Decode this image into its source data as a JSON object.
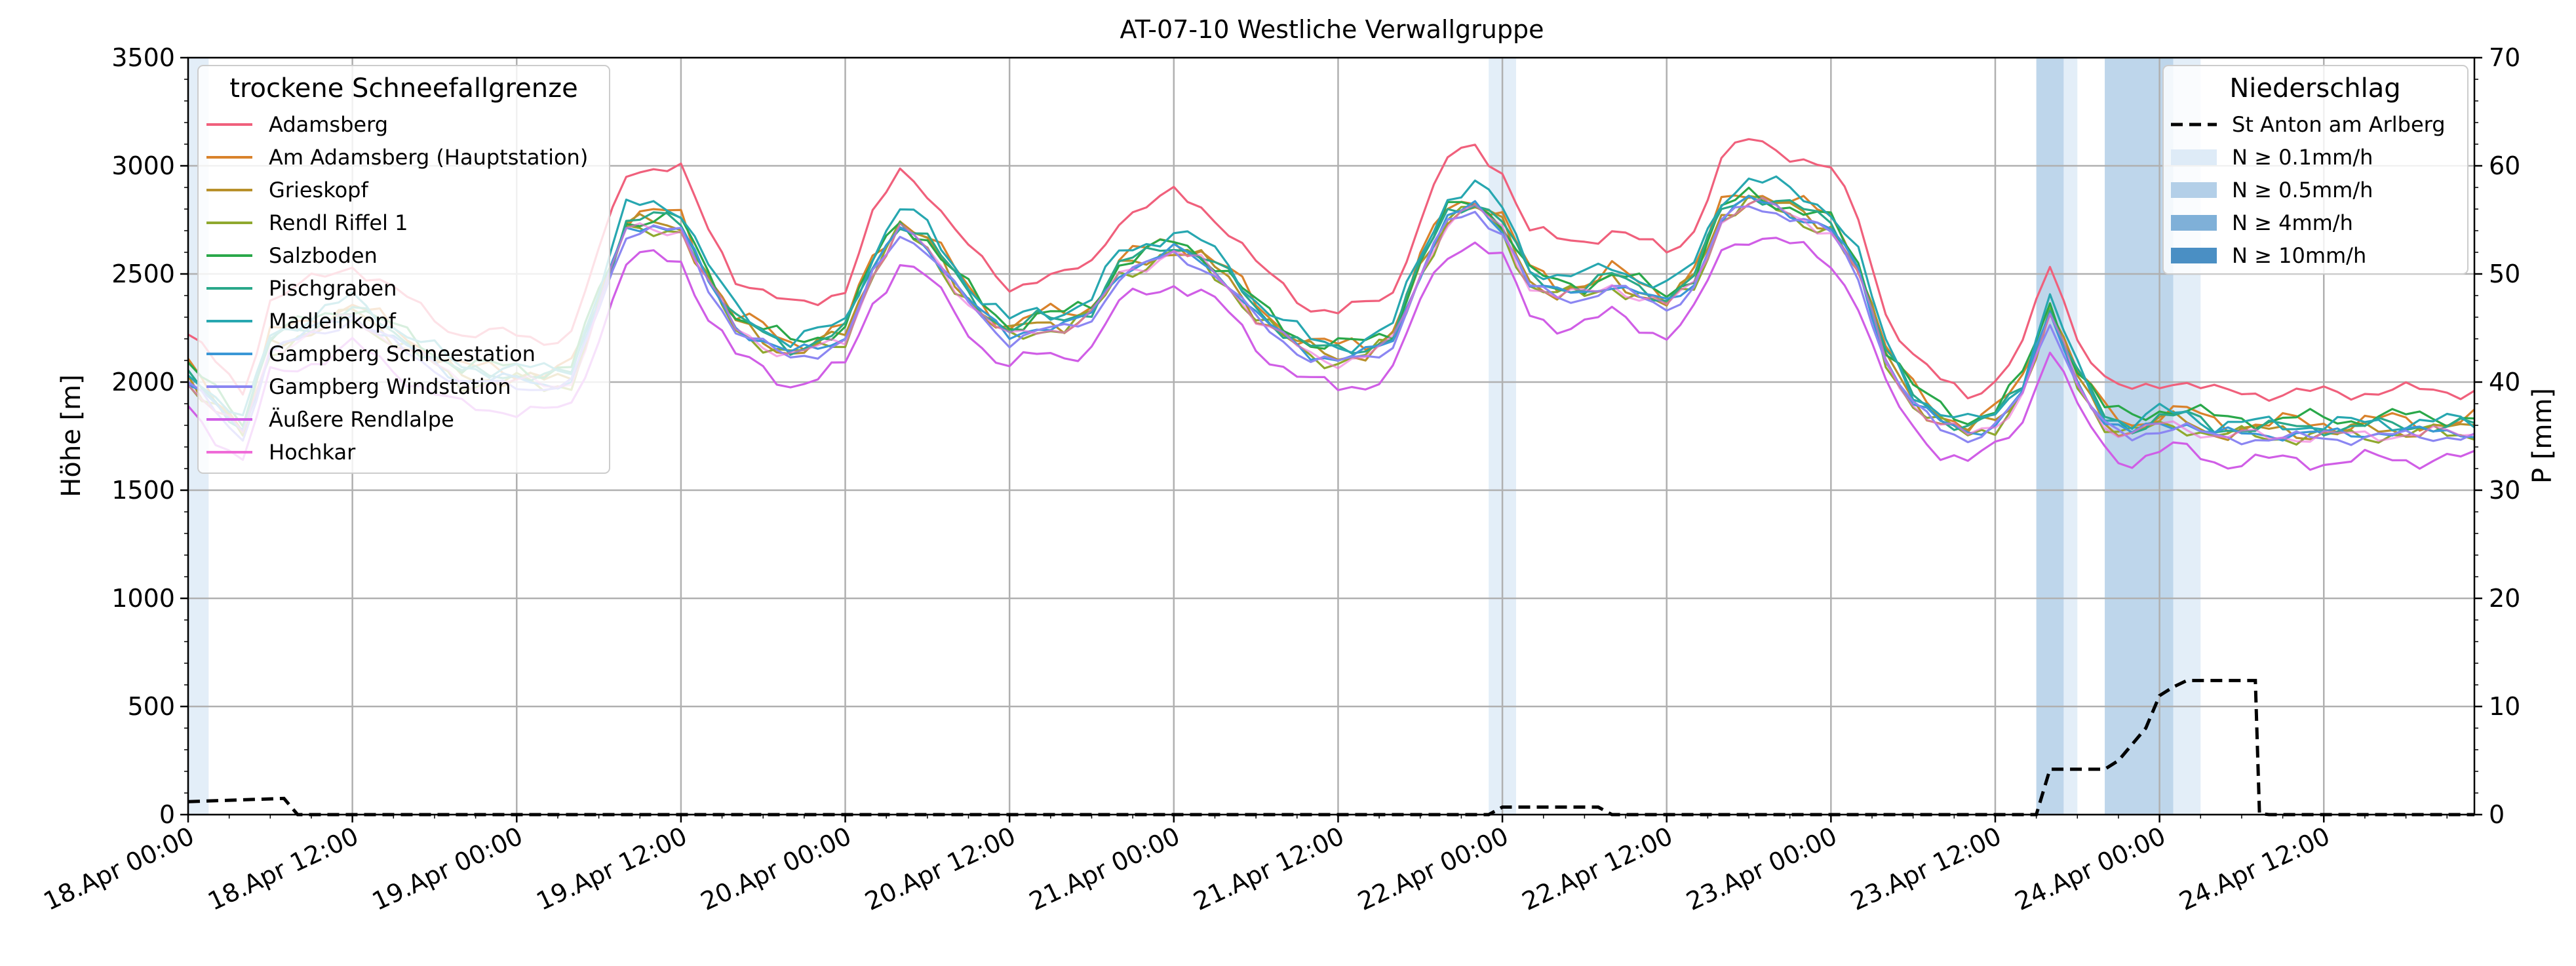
{
  "chart_data": {
    "type": "line",
    "title": "AT-07-10 Westliche Verwallgruppe",
    "ylabel_left": "Höhe [m]",
    "ylabel_right": "P [mm]",
    "ylim_left": [
      0,
      3500
    ],
    "ylim_right": [
      0,
      70
    ],
    "yticks_left": [
      "0",
      "500",
      "1000",
      "1500",
      "2000",
      "2500",
      "3000",
      "3500"
    ],
    "yticks_right": [
      "0",
      "10",
      "20",
      "30",
      "40",
      "50",
      "60",
      "70"
    ],
    "xrange_hours": [
      0,
      167
    ],
    "grid": true,
    "xtick_labels": [
      "18.Apr 00:00",
      "18.Apr 12:00",
      "19.Apr 00:00",
      "19.Apr 12:00",
      "20.Apr 00:00",
      "20.Apr 12:00",
      "21.Apr 00:00",
      "21.Apr 12:00",
      "22.Apr 00:00",
      "22.Apr 12:00",
      "23.Apr 00:00",
      "23.Apr 12:00",
      "24.Apr 00:00",
      "24.Apr 12:00"
    ],
    "legend_left": {
      "title": "trockene Schneefallgrenze",
      "placement": "top-left"
    },
    "legend_right": {
      "title": "Niederschlag",
      "placement": "top-right",
      "entries": [
        {
          "label": "St Anton am Arlberg",
          "style": "dashed",
          "color": "#000000"
        },
        {
          "label": "N ≥ 0.1mm/h",
          "color": "#deebf7"
        },
        {
          "label": "N ≥ 0.5mm/h",
          "color": "#b3cfe8"
        },
        {
          "label": "N ≥ 4mm/h",
          "color": "#7fb0d8"
        },
        {
          "label": "N ≥ 10mm/h",
          "color": "#4a8fc4"
        }
      ]
    },
    "series": [
      {
        "name": "Adamsberg",
        "color": "#f0607c",
        "offset": 240,
        "amp": 1.08,
        "noise": 25
      },
      {
        "name": "Am Adamsberg (Hauptstation)",
        "color": "#d9822b",
        "offset": 60,
        "amp": 1.0,
        "noise": 35
      },
      {
        "name": "Grieskopf",
        "color": "#b8902a",
        "offset": 20,
        "amp": 1.0,
        "noise": 30
      },
      {
        "name": "Rendl Riffel 1",
        "color": "#8fa82e",
        "offset": 0,
        "amp": 1.0,
        "noise": 30
      },
      {
        "name": "Salzboden",
        "color": "#2aa84a",
        "offset": 60,
        "amp": 0.96,
        "noise": 30
      },
      {
        "name": "Pischgraben",
        "color": "#2aa88a",
        "offset": 40,
        "amp": 1.0,
        "noise": 25
      },
      {
        "name": "Madleinkopf",
        "color": "#27a7b0",
        "offset": 80,
        "amp": 1.05,
        "noise": 30
      },
      {
        "name": "Gampberg Schneestation",
        "color": "#3a97d6",
        "offset": 10,
        "amp": 1.0,
        "noise": 20
      },
      {
        "name": "Gampberg Windstation",
        "color": "#8b86f2",
        "offset": -10,
        "amp": 1.0,
        "noise": 20
      },
      {
        "name": "Äußere Rendlalpe",
        "color": "#d05ee6",
        "offset": -130,
        "amp": 0.97,
        "noise": 30
      },
      {
        "name": "Hochkar",
        "color": "#ef6ad7",
        "offset": 0,
        "amp": 1.0,
        "noise": 25
      }
    ],
    "base_profile": {
      "x": [
        0,
        4,
        6,
        8,
        10,
        12,
        16,
        20,
        24,
        26,
        28,
        30,
        32,
        34,
        36,
        38,
        40,
        42,
        44,
        46,
        48,
        50,
        52,
        54,
        56,
        58,
        60,
        62,
        64,
        66,
        68,
        70,
        72,
        74,
        76,
        78,
        80,
        82,
        84,
        86,
        88,
        90,
        92,
        94,
        96,
        98,
        100,
        102,
        104,
        106,
        108,
        110,
        112,
        114,
        116,
        118,
        120,
        122,
        124,
        126,
        128,
        130,
        132,
        134,
        136,
        138,
        140,
        142,
        144,
        146,
        148,
        150,
        152,
        154,
        156,
        158,
        160,
        162,
        164,
        167
      ],
      "y": [
        2000,
        1750,
        2150,
        2200,
        2250,
        2300,
        2150,
        2000,
        2000,
        1980,
        2000,
        2350,
        2700,
        2720,
        2700,
        2450,
        2250,
        2180,
        2120,
        2150,
        2200,
        2500,
        2700,
        2620,
        2450,
        2300,
        2200,
        2250,
        2250,
        2300,
        2500,
        2550,
        2600,
        2550,
        2450,
        2300,
        2200,
        2120,
        2100,
        2120,
        2180,
        2500,
        2750,
        2800,
        2700,
        2450,
        2400,
        2400,
        2450,
        2400,
        2350,
        2450,
        2750,
        2830,
        2800,
        2750,
        2700,
        2500,
        2100,
        1900,
        1800,
        1750,
        1800,
        1950,
        2300,
        2000,
        1800,
        1750,
        1800,
        1800,
        1750,
        1750,
        1750,
        1750,
        1750,
        1750,
        1760,
        1760,
        1760,
        1760
      ]
    },
    "precipitation_cumulative": {
      "x": [
        0,
        7,
        8,
        95,
        96,
        103,
        104,
        135,
        136,
        140,
        141,
        143,
        144,
        145,
        146,
        148,
        151,
        151.3,
        152,
        167
      ],
      "y": [
        1.2,
        1.5,
        0,
        0,
        0.7,
        0.7,
        0,
        0,
        4.2,
        4.2,
        5,
        8,
        11,
        11.8,
        12.4,
        12.4,
        12.4,
        0.1,
        0,
        0
      ]
    },
    "precipitation_bands": [
      {
        "from": 0,
        "to": 1.5,
        "level": 1
      },
      {
        "from": 95,
        "to": 97,
        "level": 1
      },
      {
        "from": 135,
        "to": 137,
        "level": 2
      },
      {
        "from": 137,
        "to": 138,
        "level": 1
      },
      {
        "from": 140,
        "to": 145,
        "level": 2
      },
      {
        "from": 145,
        "to": 146,
        "level": 1
      },
      {
        "from": 146,
        "to": 147,
        "level": 1
      }
    ]
  }
}
